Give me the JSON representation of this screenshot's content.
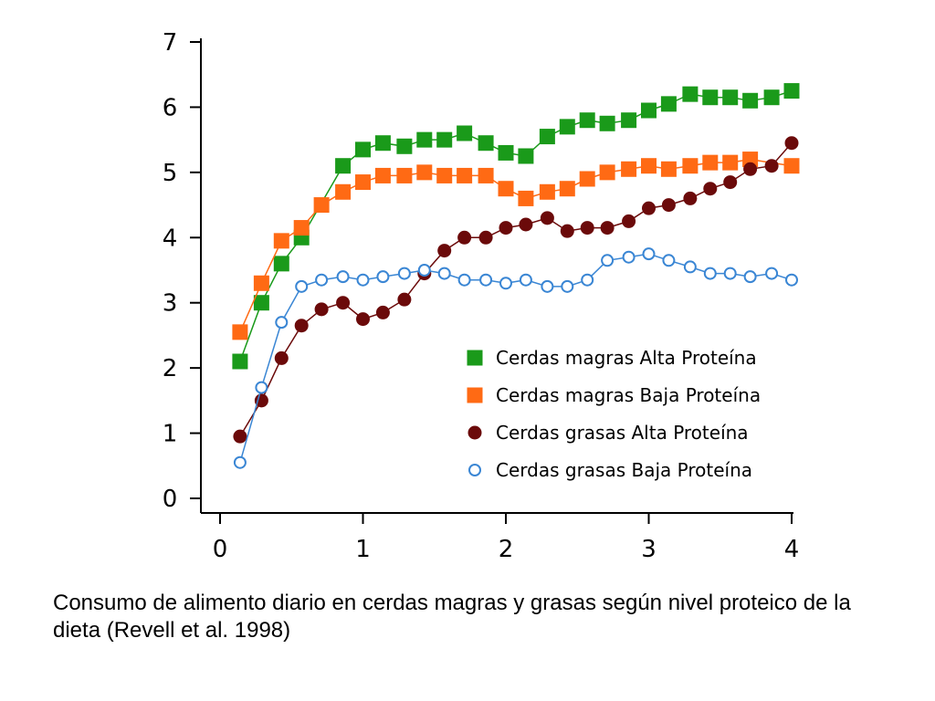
{
  "chart_data": {
    "type": "line",
    "title": "",
    "xlabel": "",
    "ylabel": "",
    "xlim": [
      0,
      4
    ],
    "ylim": [
      0,
      7
    ],
    "x_ticks": [
      0,
      1,
      2,
      3,
      4
    ],
    "y_ticks": [
      0,
      1,
      2,
      3,
      4,
      5,
      6,
      7
    ],
    "legend_position": "lower-right",
    "grid": false,
    "series": [
      {
        "name": "Cerdas magras Alta Proteína",
        "color": "#1a9a1a",
        "marker": "square",
        "x": [
          0.14,
          0.29,
          0.43,
          0.57,
          0.86,
          1.0,
          1.14,
          1.29,
          1.43,
          1.57,
          1.71,
          1.86,
          2.0,
          2.14,
          2.29,
          2.43,
          2.57,
          2.71,
          2.86,
          3.0,
          3.14,
          3.29,
          3.43,
          3.57,
          3.71,
          3.86,
          4.0
        ],
        "y": [
          2.1,
          3.0,
          3.6,
          4.0,
          5.1,
          5.35,
          5.45,
          5.4,
          5.5,
          5.5,
          5.6,
          5.45,
          5.3,
          5.25,
          5.55,
          5.7,
          5.8,
          5.75,
          5.8,
          5.95,
          6.05,
          6.2,
          6.15,
          6.15,
          6.1,
          6.15,
          6.25
        ]
      },
      {
        "name": "Cerdas magras Baja Proteína",
        "color": "#ff6a14",
        "marker": "square",
        "x": [
          0.14,
          0.29,
          0.43,
          0.57,
          0.71,
          0.86,
          1.0,
          1.14,
          1.29,
          1.43,
          1.57,
          1.71,
          1.86,
          2.0,
          2.14,
          2.29,
          2.43,
          2.57,
          2.71,
          2.86,
          3.0,
          3.14,
          3.29,
          3.43,
          3.57,
          3.71,
          4.0
        ],
        "y": [
          2.55,
          3.3,
          3.95,
          4.15,
          4.5,
          4.7,
          4.85,
          4.95,
          4.95,
          5.0,
          4.95,
          4.95,
          4.95,
          4.75,
          4.6,
          4.7,
          4.75,
          4.9,
          5.0,
          5.05,
          5.1,
          5.05,
          5.1,
          5.15,
          5.15,
          5.2,
          5.1
        ]
      },
      {
        "name": "Cerdas grasas Alta Proteína",
        "color": "#6b0a0a",
        "marker": "circle",
        "x": [
          0.14,
          0.29,
          0.43,
          0.57,
          0.71,
          0.86,
          1.0,
          1.14,
          1.29,
          1.43,
          1.57,
          1.71,
          1.86,
          2.0,
          2.14,
          2.29,
          2.43,
          2.57,
          2.71,
          2.86,
          3.0,
          3.14,
          3.29,
          3.43,
          3.57,
          3.71,
          3.86,
          4.0
        ],
        "y": [
          0.95,
          1.5,
          2.15,
          2.65,
          2.9,
          3.0,
          2.75,
          2.85,
          3.05,
          3.45,
          3.8,
          4.0,
          4.0,
          4.15,
          4.2,
          4.3,
          4.1,
          4.15,
          4.15,
          4.25,
          4.45,
          4.5,
          4.6,
          4.75,
          4.85,
          5.05,
          5.1,
          5.45
        ]
      },
      {
        "name": "Cerdas grasas Baja Proteína",
        "color": "#3a86d4",
        "marker": "open-circle",
        "x": [
          0.14,
          0.29,
          0.43,
          0.57,
          0.71,
          0.86,
          1.0,
          1.14,
          1.29,
          1.43,
          1.57,
          1.71,
          1.86,
          2.0,
          2.14,
          2.29,
          2.43,
          2.57,
          2.71,
          2.86,
          3.0,
          3.14,
          3.29,
          3.43,
          3.57,
          3.71,
          3.86,
          4.0
        ],
        "y": [
          0.55,
          1.7,
          2.7,
          3.25,
          3.35,
          3.4,
          3.35,
          3.4,
          3.45,
          3.5,
          3.45,
          3.35,
          3.35,
          3.3,
          3.35,
          3.25,
          3.25,
          3.35,
          3.65,
          3.7,
          3.75,
          3.65,
          3.55,
          3.45,
          3.45,
          3.4,
          3.45,
          3.35
        ]
      }
    ]
  },
  "caption": "Consumo de alimento diario en cerdas magras y grasas según nivel proteico de la dieta (Revell et al. 1998)"
}
